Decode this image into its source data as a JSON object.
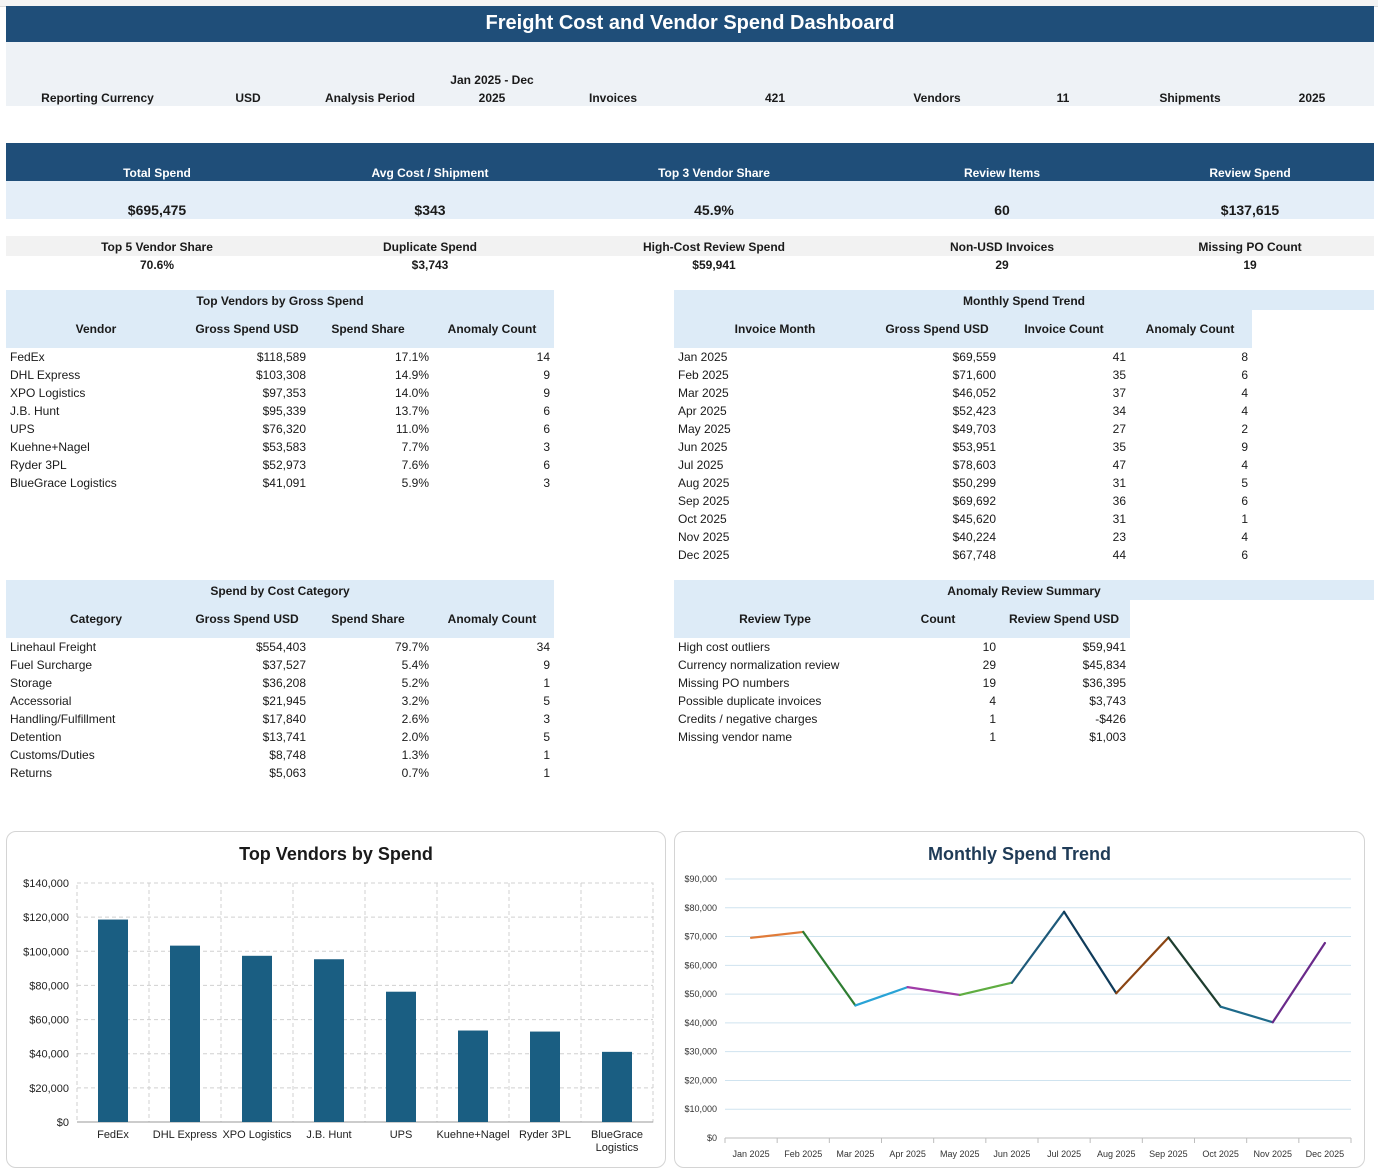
{
  "title": "Freight Cost and Vendor Spend Dashboard",
  "info": {
    "currency_label": "Reporting Currency",
    "currency_value": "USD",
    "period_label": "Analysis Period",
    "period_value_1": "Jan 2025 - Dec",
    "period_value_2": "2025",
    "invoices_label": "Invoices",
    "invoices_value": "421",
    "vendors_label": "Vendors",
    "vendors_value": "11",
    "shipments_label": "Shipments",
    "shipments_value": "2025"
  },
  "kpis": [
    {
      "label": "Total Spend",
      "value": "$695,475"
    },
    {
      "label": "Avg Cost / Shipment",
      "value": "$343"
    },
    {
      "label": "Top 3 Vendor Share",
      "value": "45.9%"
    },
    {
      "label": "Review Items",
      "value": "60"
    },
    {
      "label": "Review Spend",
      "value": "$137,615"
    }
  ],
  "secondary_kpis": [
    {
      "label": "Top 5 Vendor Share",
      "value": "70.6%"
    },
    {
      "label": "Duplicate Spend",
      "value": "$3,743"
    },
    {
      "label": "High-Cost Review Spend",
      "value": "$59,941"
    },
    {
      "label": "Non-USD Invoices",
      "value": "29"
    },
    {
      "label": "Missing PO Count",
      "value": "19"
    }
  ],
  "vendors_table": {
    "title": "Top Vendors by Gross Spend",
    "headers": [
      "Vendor",
      "Gross Spend USD",
      "Spend Share",
      "Anomaly Count"
    ],
    "rows": [
      [
        "FedEx",
        "$118,589",
        "17.1%",
        "14"
      ],
      [
        "DHL Express",
        "$103,308",
        "14.9%",
        "9"
      ],
      [
        "XPO Logistics",
        "$97,353",
        "14.0%",
        "9"
      ],
      [
        "J.B. Hunt",
        "$95,339",
        "13.7%",
        "6"
      ],
      [
        "UPS",
        "$76,320",
        "11.0%",
        "6"
      ],
      [
        "Kuehne+Nagel",
        "$53,583",
        "7.7%",
        "3"
      ],
      [
        "Ryder 3PL",
        "$52,973",
        "7.6%",
        "6"
      ],
      [
        "BlueGrace Logistics",
        "$41,091",
        "5.9%",
        "3"
      ]
    ]
  },
  "monthly_table": {
    "title": "Monthly Spend Trend",
    "headers": [
      "Invoice Month",
      "Gross Spend USD",
      "Invoice Count",
      "Anomaly Count"
    ],
    "rows": [
      [
        "Jan 2025",
        "$69,559",
        "41",
        "8"
      ],
      [
        "Feb 2025",
        "$71,600",
        "35",
        "6"
      ],
      [
        "Mar 2025",
        "$46,052",
        "37",
        "4"
      ],
      [
        "Apr 2025",
        "$52,423",
        "34",
        "4"
      ],
      [
        "May 2025",
        "$49,703",
        "27",
        "2"
      ],
      [
        "Jun 2025",
        "$53,951",
        "35",
        "9"
      ],
      [
        "Jul 2025",
        "$78,603",
        "47",
        "4"
      ],
      [
        "Aug 2025",
        "$50,299",
        "31",
        "5"
      ],
      [
        "Sep 2025",
        "$69,692",
        "36",
        "6"
      ],
      [
        "Oct 2025",
        "$45,620",
        "31",
        "1"
      ],
      [
        "Nov 2025",
        "$40,224",
        "23",
        "4"
      ],
      [
        "Dec 2025",
        "$67,748",
        "44",
        "6"
      ]
    ]
  },
  "category_table": {
    "title": "Spend by Cost Category",
    "headers": [
      "Category",
      "Gross Spend USD",
      "Spend Share",
      "Anomaly Count"
    ],
    "rows": [
      [
        "Linehaul Freight",
        "$554,403",
        "79.7%",
        "34"
      ],
      [
        "Fuel Surcharge",
        "$37,527",
        "5.4%",
        "9"
      ],
      [
        "Storage",
        "$36,208",
        "5.2%",
        "1"
      ],
      [
        "Accessorial",
        "$21,945",
        "3.2%",
        "5"
      ],
      [
        "Handling/Fulfillment",
        "$17,840",
        "2.6%",
        "3"
      ],
      [
        "Detention",
        "$13,741",
        "2.0%",
        "5"
      ],
      [
        "Customs/Duties",
        "$8,748",
        "1.3%",
        "1"
      ],
      [
        "Returns",
        "$5,063",
        "0.7%",
        "1"
      ]
    ]
  },
  "anomaly_table": {
    "title": "Anomaly Review Summary",
    "headers": [
      "Review Type",
      "Count",
      "Review Spend USD"
    ],
    "rows": [
      [
        "High cost outliers",
        "10",
        "$59,941"
      ],
      [
        "Currency normalization review",
        "29",
        "$45,834"
      ],
      [
        "Missing PO numbers",
        "19",
        "$36,395"
      ],
      [
        "Possible duplicate invoices",
        "4",
        "$3,743"
      ],
      [
        "Credits / negative charges",
        "1",
        "-$426"
      ],
      [
        "Missing vendor name",
        "1",
        "$1,003"
      ]
    ]
  },
  "chart_data": [
    {
      "type": "bar",
      "title": "Top Vendors by Spend",
      "categories": [
        "FedEx",
        "DHL Express",
        "XPO Logistics",
        "J.B. Hunt",
        "UPS",
        "Kuehne+Nagel",
        "Ryder 3PL",
        "BlueGrace Logistics"
      ],
      "values": [
        118589,
        103308,
        97353,
        95339,
        76320,
        53583,
        52973,
        41091
      ],
      "ylim": [
        0,
        140000
      ],
      "yticks": [
        "$0",
        "$20,000",
        "$40,000",
        "$60,000",
        "$80,000",
        "$100,000",
        "$120,000",
        "$140,000"
      ],
      "grid": true,
      "bar_color": "#1a5e82"
    },
    {
      "type": "line",
      "title": "Monthly Spend Trend",
      "x": [
        "Jan 2025",
        "Feb 2025",
        "Mar 2025",
        "Apr 2025",
        "May 2025",
        "Jun 2025",
        "Jul 2025",
        "Aug 2025",
        "Sep 2025",
        "Oct 2025",
        "Nov 2025",
        "Dec 2025"
      ],
      "values": [
        69559,
        71600,
        46052,
        52423,
        49703,
        53951,
        78603,
        50299,
        69692,
        45620,
        40224,
        67748
      ],
      "ylim": [
        0,
        90000
      ],
      "yticks": [
        "$0",
        "$10,000",
        "$20,000",
        "$30,000",
        "$40,000",
        "$50,000",
        "$60,000",
        "$70,000",
        "$80,000",
        "$90,000"
      ],
      "grid": true,
      "segment_colors": [
        "#e07b39",
        "#2e7d32",
        "#29a3d6",
        "#a03ca8",
        "#5fad41",
        "#1e5a7a",
        "#0f3b5a",
        "#8b4513",
        "#1e3d2f",
        "#1e6a8a",
        "#6a2a8a",
        "#3d6b2a"
      ]
    }
  ]
}
